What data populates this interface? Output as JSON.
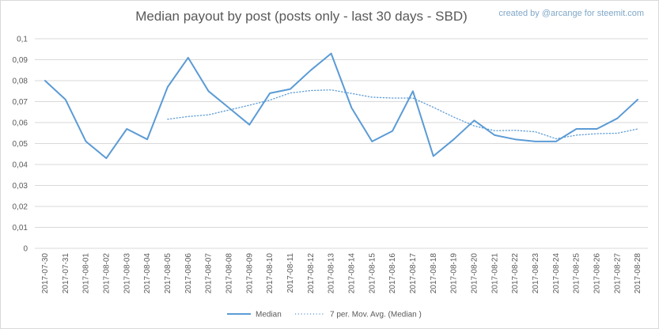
{
  "header": {
    "title": "Median payout by post (posts only - last 30 days - SBD)",
    "credit": "created by @arcange for steemit.com"
  },
  "colors": {
    "series": "#5b9bd5",
    "grid": "#d9d9d9",
    "text": "#595959"
  },
  "chart_data": {
    "type": "line",
    "title": "Median payout by post (posts only - last 30 days - SBD)",
    "grid": true,
    "legend_position": "bottom",
    "ylim": [
      0,
      0.1
    ],
    "yticks": [
      "0",
      "0,01",
      "0,02",
      "0,03",
      "0,04",
      "0,05",
      "0,06",
      "0,07",
      "0,08",
      "0,09",
      "0,1"
    ],
    "categories": [
      "2017-07-30",
      "2017-07-31",
      "2017-08-01",
      "2017-08-02",
      "2017-08-03",
      "2017-08-04",
      "2017-08-05",
      "2017-08-06",
      "2017-08-07",
      "2017-08-08",
      "2017-08-09",
      "2017-08-10",
      "2017-08-11",
      "2017-08-12",
      "2017-08-13",
      "2017-08-14",
      "2017-08-15",
      "2017-08-16",
      "2017-08-17",
      "2017-08-18",
      "2017-08-19",
      "2017-08-20",
      "2017-08-21",
      "2017-08-22",
      "2017-08-23",
      "2017-08-24",
      "2017-08-25",
      "2017-08-26",
      "2017-08-27",
      "2017-08-28"
    ],
    "series": [
      {
        "name": "Median",
        "style": "solid",
        "values": [
          0.08,
          0.071,
          0.051,
          0.043,
          0.057,
          0.052,
          0.077,
          0.091,
          0.075,
          0.067,
          0.059,
          0.074,
          0.076,
          0.085,
          0.093,
          0.067,
          0.051,
          0.056,
          0.075,
          0.044,
          0.052,
          0.061,
          0.054,
          0.052,
          0.051,
          0.051,
          0.057,
          0.057,
          0.062,
          0.071
        ]
      },
      {
        "name": "7 per. Mov. Avg. (Median )",
        "style": "dotted",
        "values": [
          null,
          null,
          null,
          null,
          null,
          null,
          0.0616,
          0.0629,
          0.0637,
          0.066,
          0.0683,
          0.0707,
          0.0741,
          0.0753,
          0.0756,
          0.0739,
          0.0721,
          0.0717,
          0.0717,
          0.0673,
          0.0626,
          0.0584,
          0.0561,
          0.0563,
          0.0556,
          0.0523,
          0.054,
          0.0547,
          0.0549,
          0.057
        ]
      }
    ]
  }
}
